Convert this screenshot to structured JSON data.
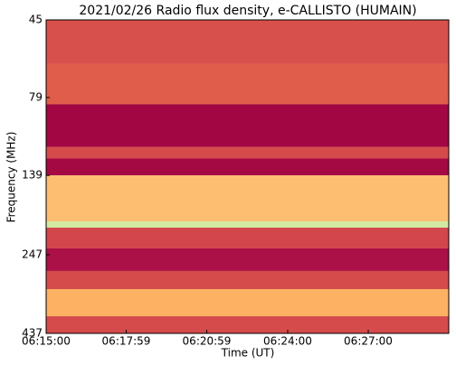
{
  "chart_data": {
    "type": "spectrogram",
    "title": "2021/02/26  Radio flux density, e-CALLISTO (HUMAIN)",
    "xlabel": "Time (UT)",
    "ylabel": "Frequency (MHz)",
    "xlim": [
      22500,
      23400
    ],
    "xticks": [
      {
        "value": 22500,
        "label": "06:15:00"
      },
      {
        "value": 22679,
        "label": "06:17:59"
      },
      {
        "value": 22859,
        "label": "06:20:59"
      },
      {
        "value": 23040,
        "label": "06:24:00"
      },
      {
        "value": 23220,
        "label": "06:27:00"
      }
    ],
    "ylim": [
      437,
      45
    ],
    "ylog": true,
    "yticks": [
      45,
      79,
      139,
      247,
      437
    ],
    "clim": [
      0,
      100
    ],
    "colormap": [
      "#9e0142",
      "#c8344e",
      "#e2624a",
      "#fdb163",
      "#fef4a8",
      "#c6e6a0"
    ],
    "bands": [
      {
        "from": 45,
        "to": 62,
        "level": 32
      },
      {
        "from": 62,
        "to": 83,
        "level": 38
      },
      {
        "from": 83,
        "to": 113,
        "level": 2
      },
      {
        "from": 113,
        "to": 123,
        "level": 30
      },
      {
        "from": 123,
        "to": 139,
        "level": 3
      },
      {
        "from": 139,
        "to": 194,
        "level": 64
      },
      {
        "from": 194,
        "to": 203,
        "level": 96
      },
      {
        "from": 203,
        "to": 236,
        "level": 28
      },
      {
        "from": 236,
        "to": 278,
        "level": 6
      },
      {
        "from": 278,
        "to": 317,
        "level": 30
      },
      {
        "from": 317,
        "to": 386,
        "level": 60
      },
      {
        "from": 386,
        "to": 437,
        "level": 30
      }
    ]
  }
}
